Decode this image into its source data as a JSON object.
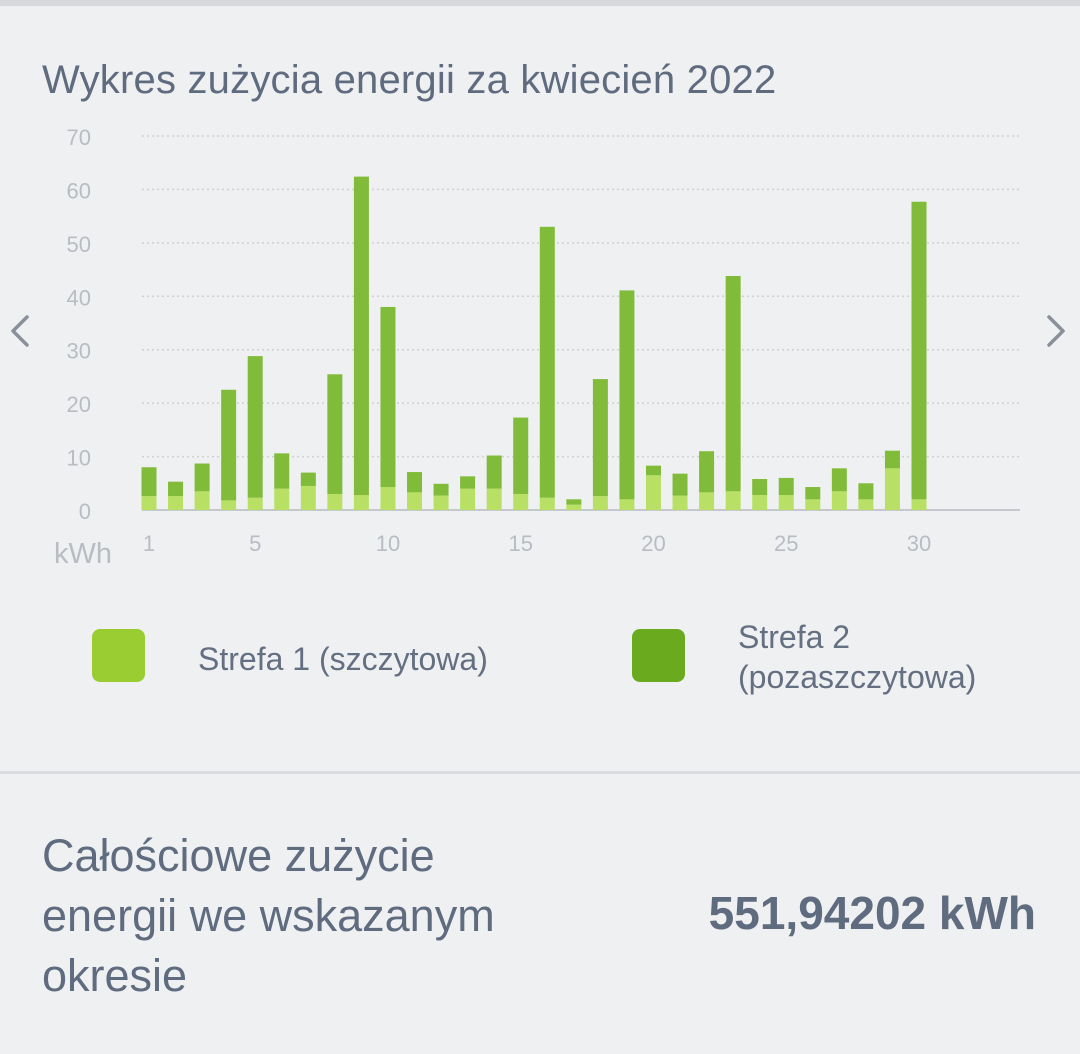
{
  "colors": {
    "zone1": "#9acd32",
    "zone2": "#6aaa1e",
    "bar_zone1": "#b8e065",
    "bar_zone2": "#80bb3a",
    "grid": "#cdd0d4",
    "axis_text": "#b8bcc3",
    "text": "#5f6b7e"
  },
  "icons": {
    "prev": "chevron-left-icon",
    "next": "chevron-right-icon"
  },
  "chart_data": {
    "type": "bar",
    "stacked": true,
    "title": "Wykres zużycia energii za kwiecień 2022",
    "xlabel": "",
    "ylabel": "kWh",
    "ylim": [
      0,
      70
    ],
    "yticks": [
      0,
      10,
      20,
      30,
      40,
      50,
      60,
      70
    ],
    "xticks": [
      1,
      5,
      10,
      15,
      20,
      25,
      30
    ],
    "xlim": [
      1,
      33
    ],
    "grid": true,
    "legend_position": "bottom",
    "categories": [
      1,
      2,
      3,
      4,
      5,
      6,
      7,
      8,
      9,
      10,
      11,
      12,
      13,
      14,
      15,
      16,
      17,
      18,
      19,
      20,
      21,
      22,
      23,
      24,
      25,
      26,
      27,
      28,
      29,
      30
    ],
    "series": [
      {
        "name": "Strefa 1 (szczytowa)",
        "values": [
          2.6,
          2.6,
          3.5,
          1.8,
          2.3,
          4.0,
          4.5,
          3.0,
          2.8,
          4.3,
          3.3,
          2.7,
          4.0,
          4.0,
          3.0,
          2.3,
          1.0,
          2.6,
          2.0,
          6.5,
          2.7,
          3.3,
          3.5,
          2.8,
          2.8,
          2.0,
          3.5,
          2.0,
          7.8,
          2.0
        ]
      },
      {
        "name": "Strefa 2 (pozaszczytowa)",
        "values": [
          5.4,
          2.7,
          5.2,
          20.7,
          26.5,
          6.6,
          2.5,
          22.4,
          59.6,
          33.7,
          3.8,
          2.2,
          2.3,
          6.2,
          14.3,
          50.7,
          1.0,
          21.9,
          39.1,
          1.8,
          4.1,
          7.7,
          40.3,
          3.0,
          3.2,
          2.3,
          4.3,
          3.0,
          3.3,
          55.7
        ]
      }
    ]
  },
  "legend": {
    "zone1_label": "Strefa 1 (szczytowa)",
    "zone2_label": "Strefa 2 (pozaszczytowa)"
  },
  "summary": {
    "label": "Całościowe zużycie energii we wskazanym okresie",
    "value": "551,94202 kWh"
  }
}
